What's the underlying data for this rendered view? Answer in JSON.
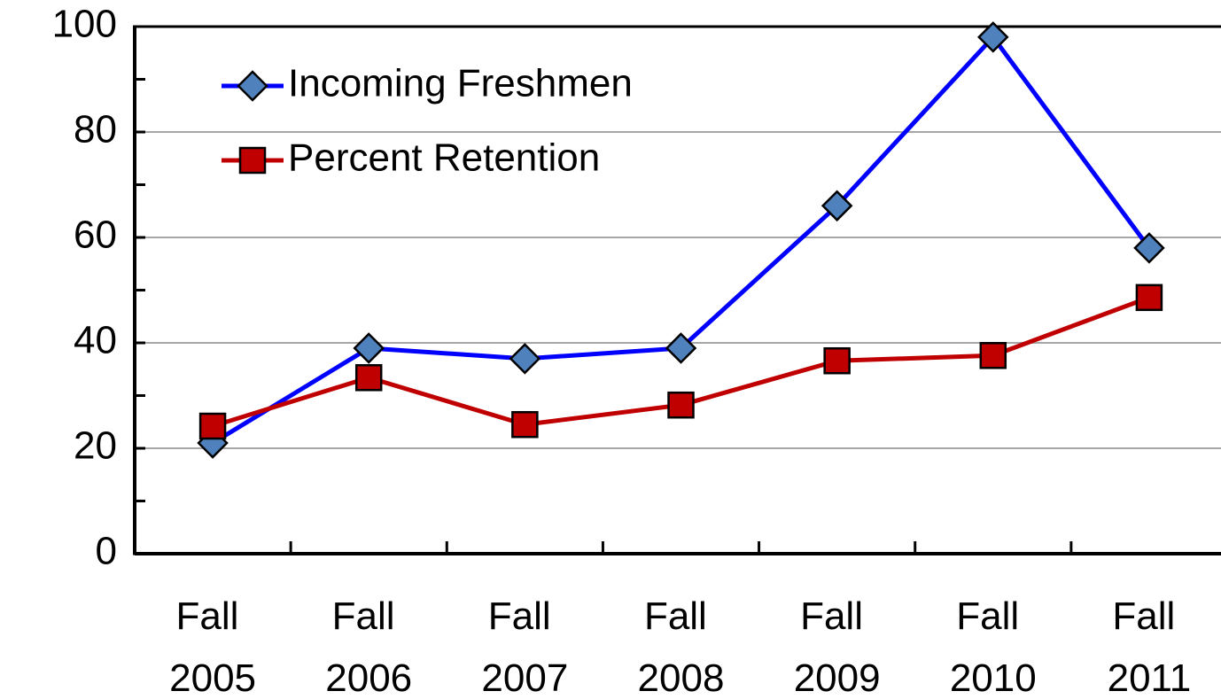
{
  "chart_data": {
    "type": "line",
    "categories": [
      "Fall 2005",
      "Fall 2006",
      "Fall 2007",
      "Fall 2008",
      "Fall 2009",
      "Fall 2010",
      "Fall 2011"
    ],
    "series": [
      {
        "name": "Incoming Freshmen",
        "color": "#0000ff",
        "marker": "diamond",
        "marker_color": "#4f81bd",
        "values": [
          21,
          39,
          37,
          39,
          66,
          98,
          58
        ]
      },
      {
        "name": "Percent Retention",
        "color": "#c00000",
        "marker": "square",
        "marker_color": "#c00000",
        "values": [
          24.2,
          33.4,
          24.5,
          28.2,
          36.6,
          37.6,
          48.6
        ]
      }
    ],
    "ylim": [
      0,
      100
    ],
    "yticks": [
      0,
      20,
      40,
      60,
      80,
      100
    ],
    "grid": true,
    "legend": "top-left"
  }
}
